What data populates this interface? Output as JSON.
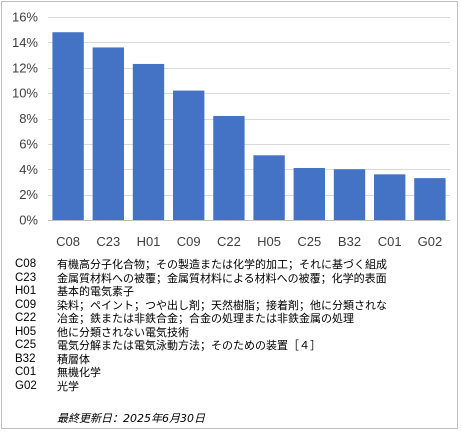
{
  "chart_data": {
    "type": "bar",
    "categories": [
      "C08",
      "C23",
      "H01",
      "C09",
      "C22",
      "H05",
      "C25",
      "B32",
      "C01",
      "G02"
    ],
    "values": [
      14.8,
      13.6,
      12.3,
      10.2,
      8.2,
      5.1,
      4.1,
      4.0,
      3.6,
      3.3
    ],
    "ylim": [
      0,
      16
    ],
    "yticks": [
      "0%",
      "2%",
      "4%",
      "6%",
      "8%",
      "10%",
      "12%",
      "14%",
      "16%"
    ],
    "ytick_values": [
      0,
      2,
      4,
      6,
      8,
      10,
      12,
      14,
      16
    ],
    "grid": true,
    "bar_color": "#4472c4"
  },
  "legend": [
    {
      "code": "C08",
      "desc": "有機高分子化合物；その製造または化学的加工；それに基づく組成"
    },
    {
      "code": "C23",
      "desc": "金属質材料への被覆；金属質材料による材料への被覆；化学的表面"
    },
    {
      "code": "H01",
      "desc": "基本的電気素子"
    },
    {
      "code": "C09",
      "desc": "染料；ペイント；つや出し剤；天然樹脂；接着剤；他に分類されな"
    },
    {
      "code": "C22",
      "desc": "冶金；鉄または非鉄合金；合金の処理または非鉄金属の処理"
    },
    {
      "code": "H05",
      "desc": "他に分類されない電気技術"
    },
    {
      "code": "C25",
      "desc": "電気分解または電気泳動方法；そのための装置［４］"
    },
    {
      "code": "B32",
      "desc": "積層体"
    },
    {
      "code": "C01",
      "desc": "無機化学"
    },
    {
      "code": "G02",
      "desc": "光学"
    }
  ],
  "updated": "最終更新日：2025年6月30日"
}
